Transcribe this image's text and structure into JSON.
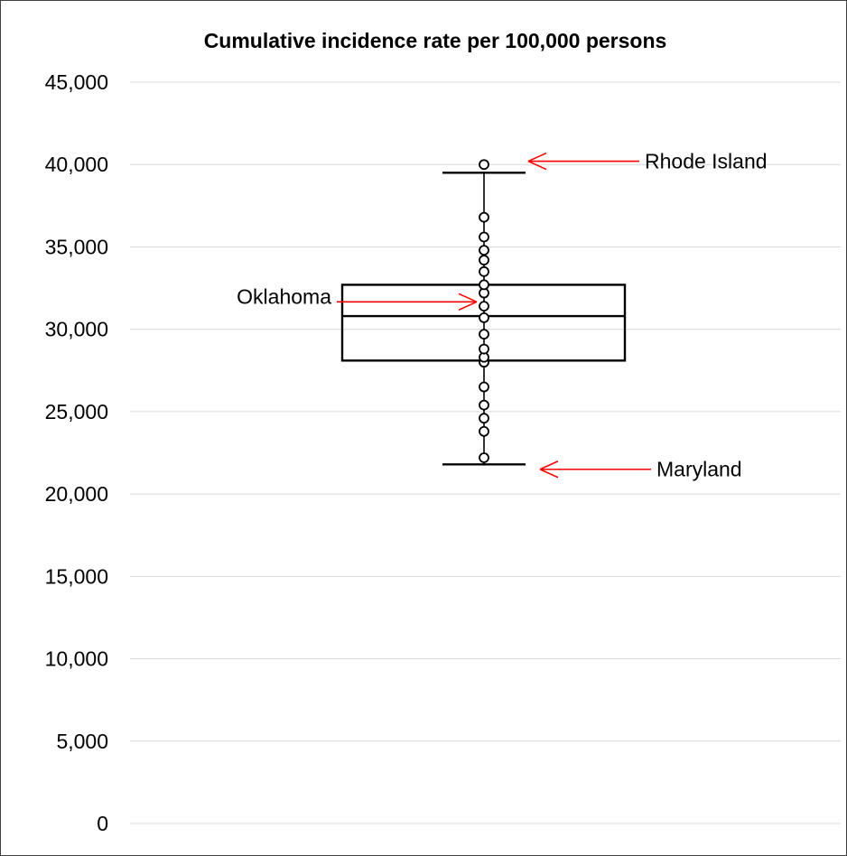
{
  "chart_data": {
    "type": "box",
    "title": "Cumulative incidence rate per 100,000 persons",
    "xlabel": "",
    "ylabel": "",
    "ylim": [
      0,
      45000
    ],
    "y_ticks": [
      0,
      5000,
      10000,
      15000,
      20000,
      25000,
      30000,
      35000,
      40000,
      45000
    ],
    "y_tick_labels": [
      "0",
      "5,000",
      "10,000",
      "15,000",
      "20,000",
      "25,000",
      "30,000",
      "35,000",
      "40,000",
      "45,000"
    ],
    "grid": true,
    "box": {
      "whisker_low": 21800,
      "q1": 28100,
      "median": 30800,
      "q3": 32700,
      "whisker_high": 39500
    },
    "points": [
      22200,
      23800,
      24600,
      25400,
      26500,
      28000,
      28300,
      28800,
      29700,
      30700,
      31400,
      32200,
      32700,
      33500,
      34200,
      34800,
      35600,
      36800,
      40000
    ],
    "outliers": [
      40000
    ],
    "annotations": [
      {
        "text": "Rhode Island",
        "value": 40200,
        "side": "right"
      },
      {
        "text": "Oklahoma",
        "value": 31500,
        "side": "left"
      },
      {
        "text": "Maryland",
        "value": 21500,
        "side": "right"
      }
    ],
    "colors": {
      "box": "#000000",
      "grid": "#d9d9d9",
      "annotation": "#ff0000"
    }
  }
}
